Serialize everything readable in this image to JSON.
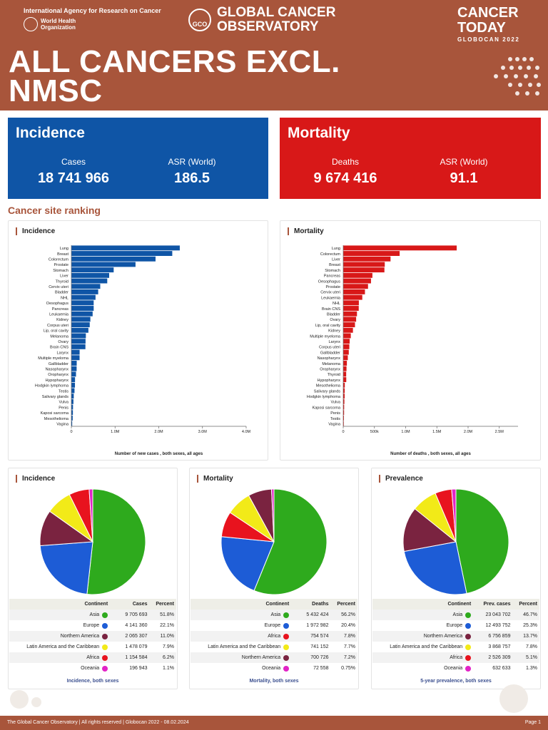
{
  "header": {
    "iarc": "International Agency for Research on Cancer",
    "who": "World Health Organization",
    "gco_logo": "GCO",
    "gco": "GLOBAL CANCER OBSERVATORY",
    "today": "CANCER TODAY",
    "globocan": "GLOBOCAN 2022",
    "title": "ALL CANCERS EXCL. NMSC"
  },
  "incidence": {
    "title": "Incidence",
    "cases_label": "Cases",
    "cases": "18 741 966",
    "asr_label": "ASR (World)",
    "asr": "186.5"
  },
  "mortality": {
    "title": "Mortality",
    "deaths_label": "Deaths",
    "deaths": "9 674 416",
    "asr_label": "ASR (World)",
    "asr": "91.1"
  },
  "ranking_title": "Cancer site ranking",
  "chart_data": [
    {
      "type": "bar",
      "title": "Incidence",
      "xlabel": "Number of new cases , both sexes, all ages",
      "ylabel": "",
      "xlim": [
        0,
        4000000
      ],
      "ticks": [
        {
          "v": 0,
          "l": "0"
        },
        {
          "v": 1000000,
          "l": "1.0M"
        },
        {
          "v": 2000000,
          "l": "2.0M"
        },
        {
          "v": 3000000,
          "l": "3.0M"
        },
        {
          "v": 4000000,
          "l": "4.0M"
        }
      ],
      "color": "#0F55A6",
      "categories": [
        "Lung",
        "Breast",
        "Colorectum",
        "Prostate",
        "Stomach",
        "Liver",
        "Thyroid",
        "Cervix uteri",
        "Bladder",
        "NHL",
        "Oesophagus",
        "Pancreas",
        "Leukaemia",
        "Kidney",
        "Corpus uteri",
        "Lip, oral cavity",
        "Melanoma",
        "Ovary",
        "Brain CNS",
        "Larynx",
        "Multiple myeloma",
        "Gallbladder",
        "Nasopharynx",
        "Oropharynx",
        "Hypopharynx",
        "Hodgkin lymphoma",
        "Testis",
        "Salivary glands",
        "Vulva",
        "Penis",
        "Kaposi sarcoma",
        "Mesothelioma",
        "Vagina"
      ],
      "values": [
        2480675,
        2308897,
        1926118,
        1467854,
        968350,
        865269,
        821214,
        661021,
        613791,
        553010,
        510716,
        510992,
        486777,
        434840,
        420368,
        389846,
        331722,
        324603,
        321731,
        188960,
        187952,
        122491,
        120434,
        106316,
        84254,
        82409,
        72031,
        55083,
        47336,
        37699,
        35361,
        30618,
        18819
      ]
    },
    {
      "type": "bar",
      "title": "Mortality",
      "xlabel": "Number of deaths , both sexes, all ages",
      "ylabel": "",
      "xlim": [
        0,
        2800000
      ],
      "ticks": [
        {
          "v": 0,
          "l": "0"
        },
        {
          "v": 500000,
          "l": "500k"
        },
        {
          "v": 1000000,
          "l": "1.0M"
        },
        {
          "v": 1500000,
          "l": "1.5M"
        },
        {
          "v": 2000000,
          "l": "2.0M"
        },
        {
          "v": 2500000,
          "l": "2.5M"
        }
      ],
      "color": "#D81818",
      "categories": [
        "Lung",
        "Colorectum",
        "Liver",
        "Breast",
        "Stomach",
        "Pancreas",
        "Oesophagus",
        "Prostate",
        "Cervix uteri",
        "Leukaemia",
        "NHL",
        "Brain CNS",
        "Bladder",
        "Ovary",
        "Lip, oral cavity",
        "Kidney",
        "Multiple myeloma",
        "Larynx",
        "Corpus uteri",
        "Gallbladder",
        "Nasopharynx",
        "Melanoma",
        "Oropharynx",
        "Thyroid",
        "Hypopharynx",
        "Mesothelioma",
        "Salivary glands",
        "Hodgkin lymphoma",
        "Vulva",
        "Kaposi sarcoma",
        "Penis",
        "Testis",
        "Vagina"
      ],
      "values": [
        1817469,
        903859,
        757948,
        665684,
        659853,
        467409,
        445129,
        397430,
        348189,
        305405,
        250475,
        248500,
        220349,
        206956,
        188438,
        155953,
        121388,
        103359,
        97723,
        89055,
        73476,
        58667,
        52624,
        47507,
        48814,
        25396,
        23531,
        22733,
        18579,
        15086,
        13734,
        11000,
        8400
      ]
    },
    {
      "type": "pie",
      "title": "Incidence",
      "footnote": "Incidence, both sexes",
      "columns": [
        "Continent",
        "Cases",
        "Percent"
      ],
      "rows": [
        {
          "name": "Asia",
          "value": "9 705 693",
          "percent": "51.8%",
          "color": "#2EAA1D"
        },
        {
          "name": "Europe",
          "value": "4 141 360",
          "percent": "22.1%",
          "color": "#1D5CD6"
        },
        {
          "name": "Northern America",
          "value": "2 065 307",
          "percent": "11.0%",
          "color": "#7A2340"
        },
        {
          "name": "Latin America and the Caribbean",
          "value": "1 478 079",
          "percent": "7.9%",
          "color": "#F2EA18"
        },
        {
          "name": "Africa",
          "value": "1 154 584",
          "percent": "6.2%",
          "color": "#E8131E"
        },
        {
          "name": "Oceania",
          "value": "196 943",
          "percent": "1.1%",
          "color": "#E223C6"
        }
      ],
      "values": [
        51.8,
        22.1,
        11.0,
        7.9,
        6.2,
        1.1
      ]
    },
    {
      "type": "pie",
      "title": "Mortality",
      "footnote": "Mortality, both sexes",
      "columns": [
        "Continent",
        "Deaths",
        "Percent"
      ],
      "rows": [
        {
          "name": "Asia",
          "value": "5 432 424",
          "percent": "56.2%",
          "color": "#2EAA1D"
        },
        {
          "name": "Europe",
          "value": "1 972 982",
          "percent": "20.4%",
          "color": "#1D5CD6"
        },
        {
          "name": "Africa",
          "value": "754 574",
          "percent": "7.8%",
          "color": "#E8131E"
        },
        {
          "name": "Latin America and the Caribbean",
          "value": "741 152",
          "percent": "7.7%",
          "color": "#F2EA18"
        },
        {
          "name": "Northern America",
          "value": "700 726",
          "percent": "7.2%",
          "color": "#7A2340"
        },
        {
          "name": "Oceania",
          "value": "72 558",
          "percent": "0.75%",
          "color": "#E223C6"
        }
      ],
      "values": [
        56.2,
        20.4,
        7.8,
        7.7,
        7.2,
        0.75
      ]
    },
    {
      "type": "pie",
      "title": "Prevalence",
      "footnote": "5-year prevalence, both sexes",
      "columns": [
        "Continent",
        "Prev. cases",
        "Percent"
      ],
      "rows": [
        {
          "name": "Asia",
          "value": "23 043 702",
          "percent": "46.7%",
          "color": "#2EAA1D"
        },
        {
          "name": "Europe",
          "value": "12 493 752",
          "percent": "25.3%",
          "color": "#1D5CD6"
        },
        {
          "name": "Northern America",
          "value": "6 756 859",
          "percent": "13.7%",
          "color": "#7A2340"
        },
        {
          "name": "Latin America and the Caribbean",
          "value": "3 868 757",
          "percent": "7.8%",
          "color": "#F2EA18"
        },
        {
          "name": "Africa",
          "value": "2 526 309",
          "percent": "5.1%",
          "color": "#E8131E"
        },
        {
          "name": "Oceania",
          "value": "632 633",
          "percent": "1.3%",
          "color": "#E223C6"
        }
      ],
      "values": [
        46.7,
        25.3,
        13.7,
        7.8,
        5.1,
        1.3
      ]
    }
  ],
  "footer": {
    "left": "The Global Cancer Observatory | All rights reserved | Globocan 2022 - 08.02.2024",
    "right": "Page 1"
  }
}
